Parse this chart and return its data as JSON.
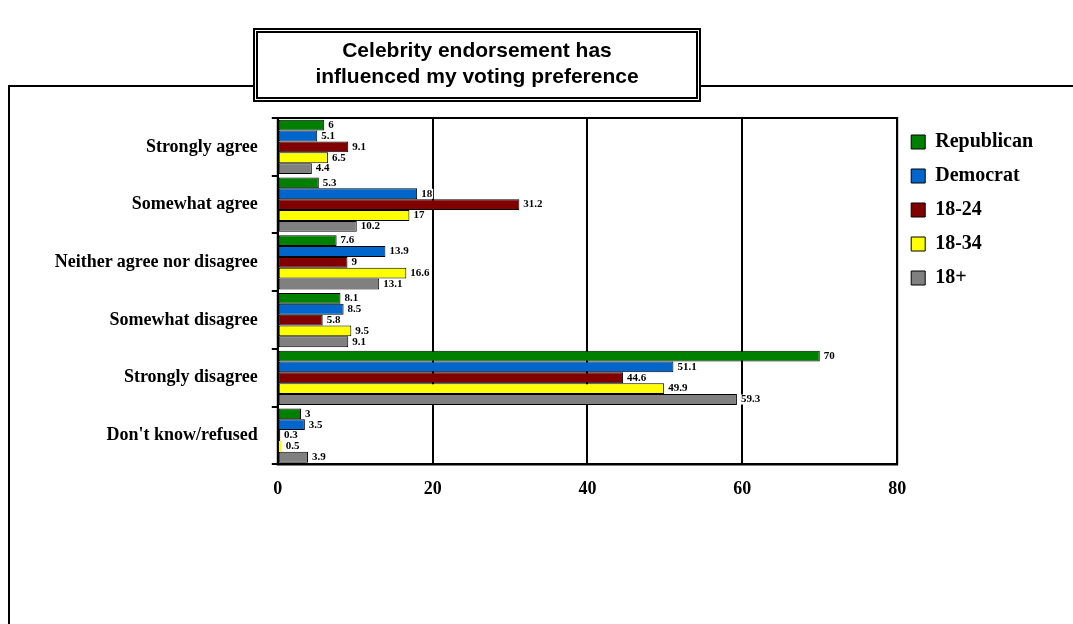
{
  "chart_data": {
    "type": "bar",
    "orientation": "horizontal",
    "title": "Celebrity endorsement has influenced my voting preference",
    "categories": [
      "Strongly agree",
      "Somewhat agree",
      "Neither agree nor disagree",
      "Somewhat disagree",
      "Strongly disagree",
      "Don't know/refused"
    ],
    "series": [
      {
        "name": "Republican",
        "color": "#008000",
        "values": [
          6,
          5.3,
          7.6,
          8.1,
          70,
          3
        ]
      },
      {
        "name": "Democrat",
        "color": "#0066cc",
        "values": [
          5.1,
          18,
          13.9,
          8.5,
          51.1,
          3.5
        ]
      },
      {
        "name": "18-24",
        "color": "#800000",
        "values": [
          9.1,
          31.2,
          9,
          5.8,
          44.6,
          0.3
        ]
      },
      {
        "name": "18-34",
        "color": "#ffff00",
        "values": [
          6.5,
          17,
          16.6,
          9.5,
          49.9,
          0.5
        ]
      },
      {
        "name": "18+",
        "color": "#808080",
        "values": [
          4.4,
          10.2,
          13.1,
          9.1,
          59.3,
          3.9
        ]
      }
    ],
    "xlim": [
      0,
      80
    ],
    "xticks": [
      0,
      20,
      40,
      60,
      80
    ],
    "grid": "x",
    "legend": "top right",
    "data_labels": true
  }
}
